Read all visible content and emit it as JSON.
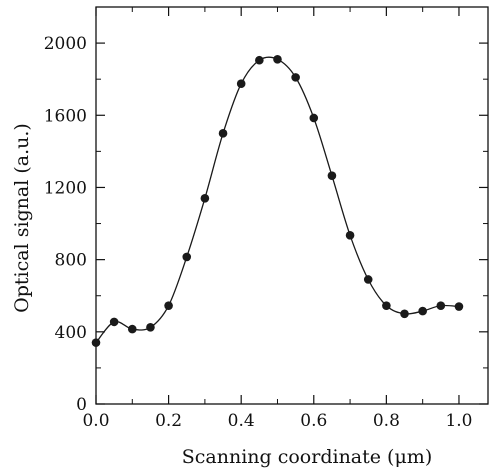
{
  "chart_data": {
    "type": "line",
    "xlabel": "Scanning coordinate (μm)",
    "ylabel": "Optical signal (a.u.)",
    "xlim": [
      0.0,
      1.08
    ],
    "ylim": [
      0,
      2200
    ],
    "xticks": [
      0.0,
      0.2,
      0.4,
      0.6,
      0.8,
      1.0
    ],
    "xtick_labels": [
      "0.0",
      "0.2",
      "0.4",
      "0.6",
      "0.8",
      "1.0"
    ],
    "yticks": [
      0,
      400,
      800,
      1200,
      1600,
      2000
    ],
    "ytick_labels": [
      "0",
      "400",
      "800",
      "1200",
      "1600",
      "2000"
    ],
    "grid": false,
    "series": [
      {
        "color": "#1a1a1a",
        "marker": "filled-circle",
        "x": [
          0.0,
          0.05,
          0.1,
          0.15,
          0.2,
          0.25,
          0.3,
          0.35,
          0.4,
          0.45,
          0.5,
          0.55,
          0.6,
          0.65,
          0.7,
          0.75,
          0.8,
          0.85,
          0.9,
          0.95,
          1.0
        ],
        "y": [
          340,
          455,
          415,
          425,
          545,
          815,
          1140,
          1500,
          1775,
          1905,
          1910,
          1810,
          1585,
          1265,
          935,
          690,
          545,
          500,
          515,
          545,
          540
        ]
      }
    ]
  }
}
